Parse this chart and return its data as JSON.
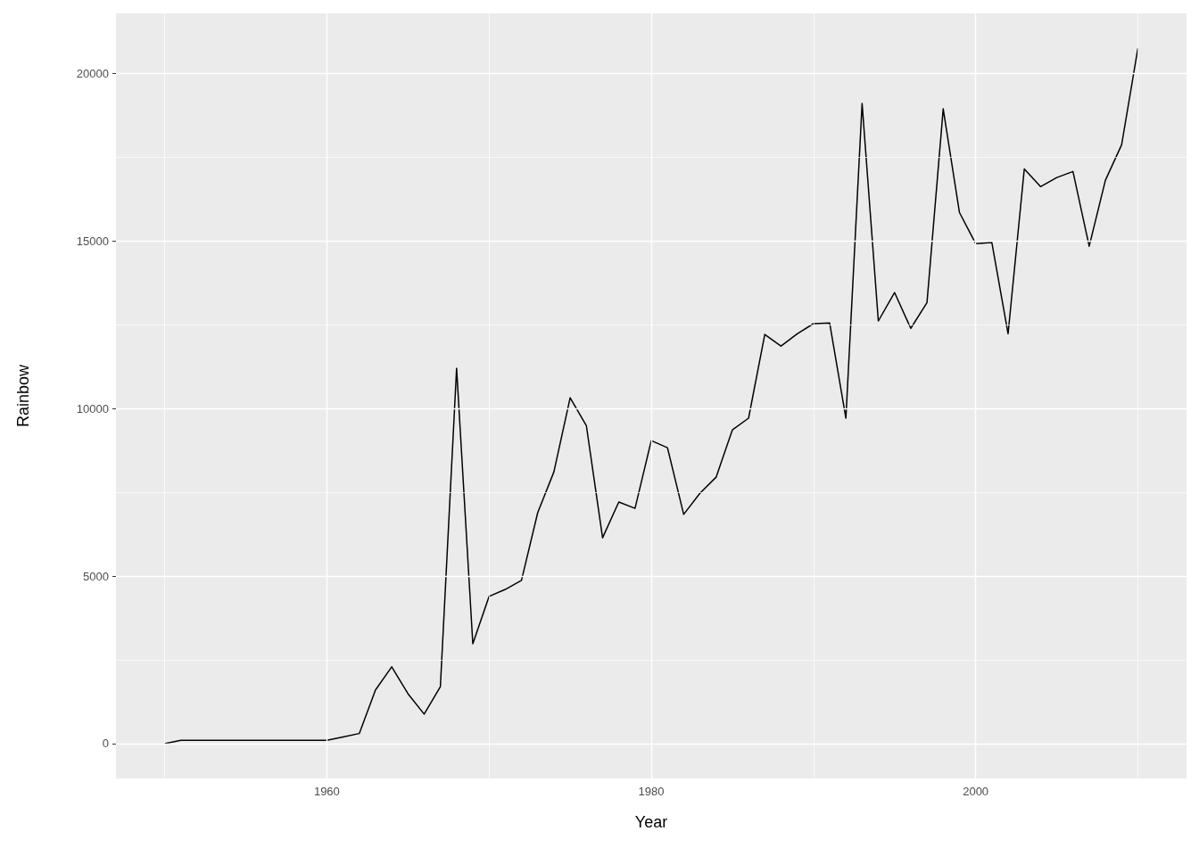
{
  "chart_data": {
    "type": "line",
    "xlabel": "Year",
    "ylabel": "Rainbow",
    "color": "#000000",
    "grid": true,
    "x": [
      1950,
      1951,
      1952,
      1953,
      1954,
      1955,
      1956,
      1957,
      1958,
      1959,
      1960,
      1961,
      1962,
      1963,
      1964,
      1965,
      1966,
      1967,
      1968,
      1969,
      1970,
      1971,
      1972,
      1973,
      1974,
      1975,
      1976,
      1977,
      1978,
      1979,
      1980,
      1981,
      1982,
      1983,
      1984,
      1985,
      1986,
      1987,
      1988,
      1989,
      1990,
      1991,
      1992,
      1993,
      1994,
      1995,
      1996,
      1997,
      1998,
      1999,
      2000,
      2001,
      2002,
      2003,
      2004,
      2005,
      2006,
      2007,
      2008,
      2009,
      2010
    ],
    "values": [
      0,
      100,
      100,
      100,
      100,
      100,
      100,
      100,
      100,
      100,
      100,
      200,
      300,
      1600,
      2290,
      1490,
      880,
      1700,
      11200,
      2980,
      4390,
      4600,
      4870,
      6890,
      8110,
      10320,
      9490,
      6140,
      7210,
      7020,
      9040,
      8830,
      6840,
      7470,
      7950,
      9360,
      9710,
      12210,
      11860,
      12230,
      12530,
      12550,
      9710,
      19100,
      12610,
      13460,
      12390,
      13160,
      18940,
      15850,
      14920,
      14950,
      12230,
      17150,
      16620,
      16890,
      17070,
      14840,
      16810,
      17870,
      20740
    ],
    "xlim": [
      1947,
      2013
    ],
    "ylim": [
      -1040,
      21790
    ],
    "xticks": [
      {
        "value": 1950,
        "label": null
      },
      1960,
      {
        "value": 1970,
        "label": null
      },
      1980,
      {
        "value": 1990,
        "label": null
      },
      2000,
      {
        "value": 2010,
        "label": null
      }
    ],
    "yticks": [
      0,
      {
        "value": 2500,
        "label": null
      },
      5000,
      {
        "value": 7500,
        "label": null
      },
      10000,
      {
        "value": 12500,
        "label": null
      },
      15000,
      {
        "value": 17500,
        "label": null
      },
      20000
    ]
  }
}
